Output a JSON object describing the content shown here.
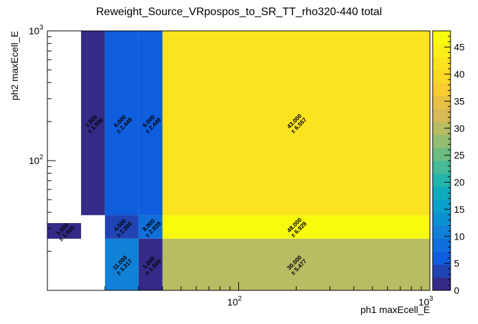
{
  "chart_data": {
    "type": "heatmap",
    "title": "Reweight_Source_VRpospos_to_SR_TT_rho320-440 total",
    "xlabel": "ph1 maxEcell_E",
    "ylabel": "ph2 maxEcell_E",
    "x_scale": "log",
    "y_scale": "log",
    "xlim": [
      10,
      1000
    ],
    "ylim": [
      10,
      1000
    ],
    "x_tick_labels": [
      {
        "value": 100,
        "base": "10",
        "exp": "2"
      },
      {
        "value": 1000,
        "base": "10",
        "exp": "3"
      }
    ],
    "y_tick_labels": [
      {
        "value": 100,
        "base": "10",
        "exp": "2"
      },
      {
        "value": 1000,
        "base": "10",
        "exp": "3"
      }
    ],
    "colorbar": {
      "min": 0,
      "max": 48,
      "ticks": [
        "0",
        "5",
        "10",
        "15",
        "20",
        "25",
        "30",
        "35",
        "40",
        "45"
      ]
    },
    "cells": [
      {
        "x0": 10,
        "x1": 15,
        "y0": 25,
        "y1": 33,
        "value": 1,
        "label": "1.000",
        "error": "± 1.000"
      },
      {
        "x0": 15,
        "x1": 20,
        "y0": 38,
        "y1": 1000,
        "value": 1,
        "label": "1.000",
        "error": "± 1.000"
      },
      {
        "x0": 20,
        "x1": 30,
        "y0": 38,
        "y1": 1000,
        "value": 6,
        "label": "6.000",
        "error": "± 2.449"
      },
      {
        "x0": 30,
        "x1": 40,
        "y0": 38,
        "y1": 1000,
        "value": 6,
        "label": "6.000",
        "error": "± 2.449"
      },
      {
        "x0": 40,
        "x1": 1000,
        "y0": 38,
        "y1": 1000,
        "value": 43,
        "label": "43.000",
        "error": "± 6.557"
      },
      {
        "x0": 20,
        "x1": 30,
        "y0": 25,
        "y1": 38,
        "value": 4,
        "label": "4.000",
        "error": "± 2.000"
      },
      {
        "x0": 30,
        "x1": 40,
        "y0": 25,
        "y1": 38,
        "value": 8,
        "label": "8.000",
        "error": "± 2.828"
      },
      {
        "x0": 40,
        "x1": 1000,
        "y0": 25,
        "y1": 38,
        "value": 48,
        "label": "48.000",
        "error": "± 6.928"
      },
      {
        "x0": 20,
        "x1": 30,
        "y0": 10,
        "y1": 25,
        "value": 11,
        "label": "11.000",
        "error": "± 3.317"
      },
      {
        "x0": 30,
        "x1": 40,
        "y0": 10,
        "y1": 25,
        "value": 1,
        "label": "1.000",
        "error": "± 1.000"
      },
      {
        "x0": 40,
        "x1": 1000,
        "y0": 10,
        "y1": 25,
        "value": 30,
        "label": "30.000",
        "error": "± 5.477"
      }
    ]
  }
}
